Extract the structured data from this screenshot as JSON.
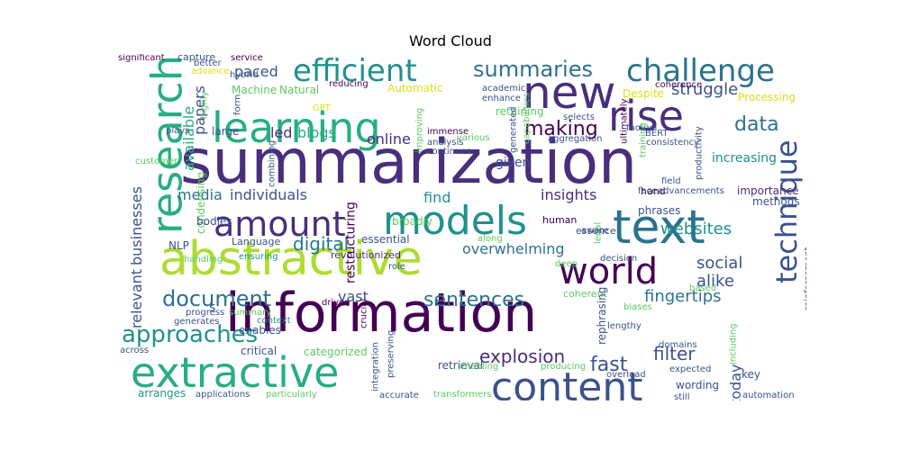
{
  "title": "Word Cloud",
  "palette": [
    "#440154",
    "#472f7d",
    "#3b528b",
    "#2c728e",
    "#21918c",
    "#28ae80",
    "#5ec962",
    "#addc30",
    "#d8e219"
  ],
  "words": [
    {
      "t": "summarization",
      "c": "#472f7d"
    },
    {
      "t": "information",
      "c": "#440154"
    },
    {
      "t": "abstractive",
      "c": "#addc30"
    },
    {
      "t": "extractive",
      "c": "#28ae80"
    },
    {
      "t": "models",
      "c": "#21918c"
    },
    {
      "t": "text",
      "c": "#2c728e"
    },
    {
      "t": "learning",
      "c": "#28ae80"
    },
    {
      "t": "content",
      "c": "#3b528b"
    },
    {
      "t": "new",
      "c": "#472f7d"
    },
    {
      "t": "amount",
      "c": "#472f7d"
    },
    {
      "t": "research",
      "c": "#28ae80"
    },
    {
      "t": "rise",
      "c": "#472f7d"
    },
    {
      "t": "challenge",
      "c": "#2c728e"
    },
    {
      "t": "efficient",
      "c": "#21918c"
    },
    {
      "t": "world",
      "c": "#440154"
    },
    {
      "t": "technique",
      "c": "#3b528b"
    },
    {
      "t": "summaries",
      "c": "#2c728e"
    },
    {
      "t": "approaches",
      "c": "#21918c"
    },
    {
      "t": "document",
      "c": "#2c728e"
    },
    {
      "t": "sentences",
      "c": "#2c728e"
    },
    {
      "t": "original",
      "c": "#21918c"
    },
    {
      "t": "explosion",
      "c": "#472f7d"
    },
    {
      "t": "making",
      "c": "#440154"
    },
    {
      "t": "data",
      "c": "#2c728e"
    },
    {
      "t": "fast",
      "c": "#3b528b"
    },
    {
      "t": "struggle",
      "c": "#3b528b"
    },
    {
      "t": "paced",
      "c": "#3b528b"
    },
    {
      "t": "online",
      "c": "#472f7d"
    },
    {
      "t": "digital",
      "c": "#2c728e"
    },
    {
      "t": "overwhelming",
      "c": "#2c728e"
    },
    {
      "t": "insights",
      "c": "#472f7d"
    },
    {
      "t": "social",
      "c": "#3b528b"
    },
    {
      "t": "alike",
      "c": "#3b528b"
    },
    {
      "t": "fingertips",
      "c": "#2c728e"
    },
    {
      "t": "filter",
      "c": "#3b528b"
    },
    {
      "t": "today",
      "c": "#3b528b"
    },
    {
      "t": "vast",
      "c": "#3b528b"
    },
    {
      "t": "websites",
      "c": "#21918c"
    },
    {
      "t": "individuals",
      "c": "#3b528b"
    },
    {
      "t": "media",
      "c": "#2c728e"
    },
    {
      "t": "businesses",
      "c": "#3b528b"
    },
    {
      "t": "relevant",
      "c": "#3b528b"
    },
    {
      "t": "available",
      "c": "#28ae80"
    },
    {
      "t": "papers",
      "c": "#3b528b"
    },
    {
      "t": "blogs",
      "c": "#28ae80"
    },
    {
      "t": "led",
      "c": "#472f7d"
    },
    {
      "t": "find",
      "c": "#21918c"
    },
    {
      "t": "given",
      "c": "#3b528b"
    },
    {
      "t": "increasing",
      "c": "#21918c"
    },
    {
      "t": "methods",
      "c": "#3b528b"
    },
    {
      "t": "importance",
      "c": "#472f7d"
    },
    {
      "t": "essential",
      "c": "#3b528b"
    },
    {
      "t": "broadly",
      "c": "#5ec962"
    },
    {
      "t": "large",
      "c": "#3b528b"
    },
    {
      "t": "Processing",
      "c": "#d8e219"
    },
    {
      "t": "Natural",
      "c": "#5ec962"
    },
    {
      "t": "Machine",
      "c": "#5ec962"
    },
    {
      "t": "Automatic",
      "c": "#d8e219"
    },
    {
      "t": "retaining",
      "c": "#5ec962"
    },
    {
      "t": "condensing",
      "c": "#5ec962"
    },
    {
      "t": "bodies",
      "c": "#3b528b"
    },
    {
      "t": "NLP",
      "c": "#3b528b"
    },
    {
      "t": "Language",
      "c": "#3b528b"
    },
    {
      "t": "ensuring",
      "c": "#21918c"
    },
    {
      "t": "revolutionized",
      "c": "#472f7d"
    },
    {
      "t": "phrases",
      "c": "#3b528b"
    },
    {
      "t": "hand",
      "c": "#440154"
    },
    {
      "t": "human",
      "c": "#440154"
    },
    {
      "t": "essence",
      "c": "#3b528b"
    },
    {
      "t": "role",
      "c": "#3b528b"
    },
    {
      "t": "coherent",
      "c": "#5ec962"
    },
    {
      "t": "rephrasing",
      "c": "#3b528b"
    },
    {
      "t": "restructuring",
      "c": "#440154"
    },
    {
      "t": "s",
      "c": "#3b528b"
    },
    {
      "t": "summary",
      "c": "#5ec962"
    },
    {
      "t": "progress",
      "c": "#3b528b"
    },
    {
      "t": "generates",
      "c": "#3b528b"
    },
    {
      "t": "enables",
      "c": "#3b528b"
    },
    {
      "t": "critical",
      "c": "#3b528b"
    },
    {
      "t": "categorized",
      "c": "#5ec962"
    },
    {
      "t": "arranges",
      "c": "#21918c"
    },
    {
      "t": "applications",
      "c": "#3b528b"
    },
    {
      "t": "particularly",
      "c": "#5ec962"
    },
    {
      "t": "accurate",
      "c": "#3b528b"
    },
    {
      "t": "transformers",
      "c": "#5ec962"
    },
    {
      "t": "retrieval",
      "c": "#3b528b"
    },
    {
      "t": "integration",
      "c": "#3b528b"
    },
    {
      "t": "preserving",
      "c": "#3b528b"
    },
    {
      "t": "driven",
      "c": "#440154"
    },
    {
      "t": "crucial",
      "c": "#440154"
    },
    {
      "t": "context",
      "c": "#21918c"
    },
    {
      "t": "across",
      "c": "#3b528b"
    },
    {
      "t": "lengthy",
      "c": "#3b528b"
    },
    {
      "t": "biases",
      "c": "#5ec962"
    },
    {
      "t": "overload",
      "c": "#3b528b"
    },
    {
      "t": "producing",
      "c": "#5ec962"
    },
    {
      "t": "enabling",
      "c": "#5ec962"
    },
    {
      "t": "expected",
      "c": "#3b528b"
    },
    {
      "t": "wording",
      "c": "#3b528b"
    },
    {
      "t": "key",
      "c": "#3b528b"
    },
    {
      "t": "still",
      "c": "#3b528b"
    },
    {
      "t": "automation",
      "c": "#3b528b"
    },
    {
      "t": "domains",
      "c": "#3b528b"
    },
    {
      "t": "including",
      "c": "#5ec962"
    },
    {
      "t": "reinforcement",
      "c": "#3b528b"
    },
    {
      "t": "akin",
      "c": "#3b528b"
    },
    {
      "t": "based",
      "c": "#5ec962"
    },
    {
      "t": "advancements",
      "c": "#3b528b"
    },
    {
      "t": "face",
      "c": "#3b528b"
    },
    {
      "t": "field",
      "c": "#3b528b"
    },
    {
      "t": "productivity",
      "c": "#3b528b"
    },
    {
      "t": "consistency",
      "c": "#3b528b"
    },
    {
      "t": "BERT",
      "c": "#3b528b"
    },
    {
      "t": "coherence",
      "c": "#440154"
    },
    {
      "t": "Despite",
      "c": "#d8e219"
    },
    {
      "t": "maintaining",
      "c": "#d8e219"
    },
    {
      "t": "factual",
      "c": "#3b528b"
    },
    {
      "t": "selects",
      "c": "#3b528b"
    },
    {
      "t": "aggregation",
      "c": "#3b528b"
    },
    {
      "t": "training",
      "c": "#5ec962"
    },
    {
      "t": "ultimately",
      "c": "#440154"
    },
    {
      "t": "generated",
      "c": "#3b528b"
    },
    {
      "t": "capabilities",
      "c": "#5ec962"
    },
    {
      "t": "enhance",
      "c": "#3b528b"
    },
    {
      "t": "academic",
      "c": "#3b528b"
    },
    {
      "t": "various",
      "c": "#5ec962"
    },
    {
      "t": "analysis",
      "c": "#3b528b"
    },
    {
      "t": "continues",
      "c": "#3b528b"
    },
    {
      "t": "immense",
      "c": "#440154"
    },
    {
      "t": "improving",
      "c": "#5ec962"
    },
    {
      "t": "combining",
      "c": "#3b528b"
    },
    {
      "t": "GPT",
      "c": "#d8e219"
    },
    {
      "t": "reducing",
      "c": "#440154"
    },
    {
      "t": "form",
      "c": "#3b528b"
    },
    {
      "t": "highly",
      "c": "#5ec962"
    },
    {
      "t": "hybrid",
      "c": "#3b528b"
    },
    {
      "t": "advance",
      "c": "#d8e219"
    },
    {
      "t": "better",
      "c": "#3b528b"
    },
    {
      "t": "capture",
      "c": "#3b528b"
    },
    {
      "t": "service",
      "c": "#440154"
    },
    {
      "t": "significant",
      "c": "#440154"
    },
    {
      "t": "plays",
      "c": "#3b528b"
    },
    {
      "t": "customer",
      "c": "#5ec962"
    },
    {
      "t": "handling",
      "c": "#5ec962"
    },
    {
      "t": "deep",
      "c": "#5ec962"
    },
    {
      "t": "decision",
      "c": "#3b528b"
    },
    {
      "t": "legal",
      "c": "#5ec962"
    },
    {
      "t": "aware",
      "c": "#3b528b"
    },
    {
      "t": "along",
      "c": "#5ec962"
    }
  ]
}
